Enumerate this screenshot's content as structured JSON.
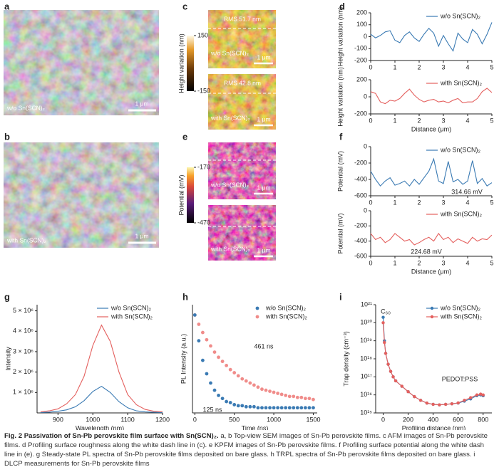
{
  "panel_labels": [
    "a",
    "b",
    "c",
    "d",
    "e",
    "f",
    "g",
    "h",
    "i"
  ],
  "images": {
    "a": {
      "label": "w/o Sn(SCN)₂",
      "scale": "1 μm"
    },
    "b": {
      "label": "with Sn(SCN)₂",
      "scale": "1 μm"
    },
    "c_top": {
      "rms": "RMS 51.7 nm",
      "label": "w/o Sn(SCN)₂",
      "scale": "1 μm"
    },
    "c_bottom": {
      "rms": "RMS 42.8 nm",
      "label": "with Sn(SCN)₂",
      "scale": "1 μm"
    },
    "e_top": {
      "label": "w/o Sn(SCN)₂",
      "scale": "1 μm"
    },
    "e_bottom": {
      "label": "with Sn(SCN)₂",
      "scale": "1 μm"
    }
  },
  "colorbars": [
    {
      "label": "Height variation (nm)",
      "lim": [
        -150,
        150
      ],
      "ticks": [
        150,
        -150
      ]
    },
    {
      "label": "Potential (mV)",
      "lim": [
        -470,
        -170
      ],
      "ticks": [
        -170,
        -470
      ]
    }
  ],
  "chart_data": [
    {
      "type": "line",
      "y_label": "Height variation (nm)",
      "x": [
        0,
        0.2,
        0.4,
        0.6,
        0.8,
        1,
        1.2,
        1.4,
        1.6,
        1.8,
        2,
        2.2,
        2.4,
        2.6,
        2.8,
        3,
        3.2,
        3.4,
        3.6,
        3.8,
        4,
        4.2,
        4.4,
        4.6,
        4.8,
        5
      ],
      "series": [
        {
          "name": "w/o Sn(SCN)₂",
          "color": "#3a7ab3",
          "values": [
            20,
            -10,
            10,
            40,
            50,
            -30,
            -50,
            10,
            40,
            -10,
            -40,
            20,
            70,
            30,
            -80,
            10,
            -60,
            -120,
            30,
            -20,
            -50,
            60,
            20,
            -60,
            20,
            120
          ]
        }
      ],
      "xlim": [
        0,
        5
      ],
      "xticks": [
        0,
        1,
        2,
        3,
        4,
        5
      ],
      "ylim": [
        -200,
        200
      ],
      "yticks": [
        -200,
        -100,
        0,
        100,
        200
      ],
      "legend": "upper right"
    },
    {
      "type": "line",
      "y_label": "Height variation (nm)",
      "x_label": "Distance (μm)",
      "x": [
        0,
        0.2,
        0.4,
        0.6,
        0.8,
        1,
        1.2,
        1.4,
        1.6,
        1.8,
        2,
        2.2,
        2.4,
        2.6,
        2.8,
        3,
        3.2,
        3.4,
        3.6,
        3.8,
        4,
        4.2,
        4.4,
        4.6,
        4.8,
        5
      ],
      "series": [
        {
          "name": "with Sn(SCN)₂",
          "color": "#e4605e",
          "values": [
            60,
            40,
            -60,
            -80,
            -40,
            -50,
            -20,
            40,
            90,
            20,
            -30,
            -60,
            -40,
            -30,
            -60,
            -50,
            -70,
            -40,
            -20,
            -70,
            -60,
            -60,
            -20,
            60,
            100,
            50
          ]
        }
      ],
      "xlim": [
        0,
        5
      ],
      "xticks": [
        0,
        1,
        2,
        3,
        4,
        5
      ],
      "ylim": [
        -200,
        200
      ],
      "yticks": [
        -200,
        0,
        200
      ],
      "legend": "upper right"
    },
    {
      "type": "line",
      "y_label": "Potential (mV)",
      "x": [
        0,
        0.2,
        0.4,
        0.6,
        0.8,
        1,
        1.2,
        1.4,
        1.6,
        1.8,
        2,
        2.2,
        2.4,
        2.6,
        2.8,
        3,
        3.2,
        3.4,
        3.6,
        3.8,
        4,
        4.2,
        4.4,
        4.6,
        4.8,
        5
      ],
      "series": [
        {
          "name": "w/o Sn(SCN)₂",
          "color": "#3a7ab3",
          "values": [
            -300,
            -400,
            -480,
            -420,
            -380,
            -470,
            -450,
            -420,
            -480,
            -400,
            -460,
            -380,
            -300,
            -150,
            -420,
            -450,
            -180,
            -430,
            -400,
            -460,
            -420,
            -170,
            -450,
            -390,
            -480,
            -440
          ]
        }
      ],
      "annotations": [
        {
          "text": "314.66 mV",
          "color": "#3a7ab3"
        }
      ],
      "xlim": [
        0,
        5
      ],
      "xticks": [
        0,
        1,
        2,
        3,
        4,
        5
      ],
      "ylim": [
        -600,
        0
      ],
      "yticks": [
        -600,
        -400,
        -200,
        0
      ],
      "legend": "upper right"
    },
    {
      "type": "line",
      "y_label": "Potential (mV)",
      "x_label": "Distance (μm)",
      "x": [
        0,
        0.2,
        0.4,
        0.6,
        0.8,
        1,
        1.2,
        1.4,
        1.6,
        1.8,
        2,
        2.2,
        2.4,
        2.6,
        2.8,
        3,
        3.2,
        3.4,
        3.6,
        3.8,
        4,
        4.2,
        4.4,
        4.6,
        4.8,
        5
      ],
      "series": [
        {
          "name": "with Sn(SCN)₂",
          "color": "#e4605e",
          "values": [
            -300,
            -380,
            -350,
            -420,
            -380,
            -300,
            -350,
            -400,
            -380,
            -450,
            -420,
            -380,
            -350,
            -400,
            -300,
            -380,
            -350,
            -420,
            -370,
            -400,
            -430,
            -350,
            -400,
            -370,
            -380,
            -320
          ]
        }
      ],
      "annotations": [
        {
          "text": "224.68 mV",
          "color": "#e4605e"
        }
      ],
      "xlim": [
        0,
        5
      ],
      "xticks": [
        0,
        1,
        2,
        3,
        4,
        5
      ],
      "ylim": [
        -600,
        0
      ],
      "yticks": [
        -600,
        -400,
        -200,
        0
      ],
      "legend": "upper right"
    },
    {
      "type": "line",
      "y_label": "Intensity",
      "x_label": "Wavelength (nm)",
      "x": [
        850,
        875,
        900,
        925,
        950,
        975,
        1000,
        1025,
        1050,
        1075,
        1100,
        1125,
        1150,
        1175,
        1200
      ],
      "series": [
        {
          "name": "w/o Sn(SCN)₂",
          "color": "#3a7ab3",
          "values": [
            20000,
            40000,
            80000,
            150000,
            300000,
            600000,
            1050000,
            1300000,
            1000000,
            550000,
            250000,
            100000,
            50000,
            30000,
            20000
          ]
        },
        {
          "name": "with Sn(SCN)₂",
          "color": "#e4605e",
          "values": [
            50000,
            100000,
            200000,
            450000,
            900000,
            1800000,
            3300000,
            4300000,
            3500000,
            2000000,
            900000,
            400000,
            170000,
            80000,
            50000
          ]
        }
      ],
      "xlim": [
        840,
        1200
      ],
      "xticks": [
        900,
        1000,
        1100,
        1200
      ],
      "ylim": [
        0,
        5300000
      ],
      "yticks": [
        {
          "value": 1000000,
          "label": "1 × 10⁶"
        },
        {
          "value": 2000000,
          "label": "2 × 10⁶"
        },
        {
          "value": 3000000,
          "label": "3 × 10⁶"
        },
        {
          "value": 4000000,
          "label": "4 × 10⁶"
        },
        {
          "value": 5000000,
          "label": "5 × 10⁶"
        }
      ],
      "legend": "upper right"
    },
    {
      "type": "scatter",
      "y_label": "PL Intensity (a.u.)",
      "x_label": "Time (ns)",
      "x": [
        0,
        50,
        100,
        150,
        200,
        250,
        300,
        350,
        400,
        450,
        500,
        550,
        600,
        650,
        700,
        750,
        800,
        850,
        900,
        950,
        1000,
        1050,
        1100,
        1150,
        1200,
        1250,
        1300,
        1350,
        1400,
        1450,
        1500
      ],
      "series": [
        {
          "name": "w/o Sn(SCN)₂",
          "color": "#3a7ab3",
          "values": [
            0.95,
            0.7,
            0.51,
            0.38,
            0.29,
            0.22,
            0.17,
            0.14,
            0.11,
            0.1,
            0.08,
            0.07,
            0.07,
            0.06,
            0.06,
            0.06,
            0.05,
            0.05,
            0.05,
            0.05,
            0.05,
            0.05,
            0.05,
            0.05,
            0.05,
            0.05,
            0.05,
            0.05,
            0.05,
            0.05,
            0.05
          ]
        },
        {
          "name": "with Sn(SCN)₂",
          "color": "#f08c8a",
          "values": [
            0.95,
            0.86,
            0.78,
            0.71,
            0.65,
            0.59,
            0.54,
            0.5,
            0.46,
            0.42,
            0.39,
            0.36,
            0.33,
            0.31,
            0.29,
            0.27,
            0.25,
            0.23,
            0.22,
            0.21,
            0.2,
            0.19,
            0.18,
            0.17,
            0.16,
            0.16,
            0.15,
            0.15,
            0.14,
            0.14,
            0.13
          ]
        }
      ],
      "annotations": [
        {
          "text": "461 ns",
          "color": "#e4605e"
        },
        {
          "text": "125 ns",
          "color": "#3a7ab3"
        }
      ],
      "xlim": [
        -30,
        1550
      ],
      "xticks": [
        0,
        500,
        1000,
        1500
      ],
      "ylim": [
        0,
        1.05
      ],
      "legend": "upper right"
    },
    {
      "type": "line",
      "markers": true,
      "log_y": true,
      "y_label": "Trap density (cm⁻³)",
      "x_label": "Profiling distance (nm)",
      "x": [
        0,
        10,
        20,
        40,
        60,
        80,
        100,
        150,
        200,
        250,
        300,
        350,
        400,
        450,
        500,
        550,
        600,
        650,
        700,
        750,
        780,
        800
      ],
      "series": [
        {
          "name": "w/o Sn(SCN)₂",
          "color": "#3a7ab3",
          "values": [
            2e+20,
            1e+19,
            2e+18,
            5e+17,
            2e+17,
            1e+17,
            6e+16,
            3e+16,
            1.5e+16,
            8000000000000000.0,
            5000000000000000.0,
            3500000000000000.0,
            3000000000000000.0,
            2800000000000000.0,
            3000000000000000.0,
            3200000000000000.0,
            3500000000000000.0,
            4500000000000000.0,
            6000000000000000.0,
            9000000000000000.0,
            1e+16,
            9000000000000000.0
          ]
        },
        {
          "name": "with Sn(SCN)₂",
          "color": "#e4605e",
          "values": [
            1e+20,
            8e+18,
            2e+18,
            5e+17,
            2e+17,
            1e+17,
            6e+16,
            3e+16,
            1.5e+16,
            8000000000000000.0,
            5000000000000000.0,
            3500000000000000.0,
            3000000000000000.0,
            2800000000000000.0,
            3000000000000000.0,
            3200000000000000.0,
            3600000000000000.0,
            5000000000000000.0,
            7000000000000000.0,
            1e+16,
            1.1e+16,
            1e+16
          ]
        }
      ],
      "annotations": [
        {
          "text": "C₆₀",
          "color": "#222222"
        },
        {
          "text": "PEDOT:PSS",
          "color": "#222222"
        }
      ],
      "xlim": [
        -60,
        870
      ],
      "xticks": [
        0,
        200,
        400,
        600,
        800
      ],
      "ylim": [
        1000000000000000.0,
        1e+21
      ],
      "yticks": [
        {
          "value": 1000000000000000.0,
          "label": "10¹⁵"
        },
        {
          "value": 1e+16,
          "label": "10¹⁶"
        },
        {
          "value": 1e+17,
          "label": "10¹⁷"
        },
        {
          "value": 1e+18,
          "label": "10¹⁸"
        },
        {
          "value": 1e+19,
          "label": "10¹⁹"
        },
        {
          "value": 1e+20,
          "label": "10²⁰"
        },
        {
          "value": 1e+21,
          "label": "10²¹"
        }
      ],
      "legend": "upper right"
    }
  ],
  "caption": {
    "title": "Fig. 2 Passivation of Sn-Pb perovskite film surface with Sn(SCN)₂.",
    "body": "a, b Top-view SEM images of Sn-Pb perovskite films. c AFM images of Sn-Pb perovskite films. d Profiling surface roughness along the white dash line in (c). e KPFM images of Sn-Pb perovskite films. f Profiling surface potential along the white dash line in (e). g Steady-state PL spectra of Sn-Pb perovskite films deposited on bare glass. h TRPL spectra of Sn-Pb perovskite films deposited on bare glass. i DLCP measurements for Sn-Pb perovskite films"
  }
}
